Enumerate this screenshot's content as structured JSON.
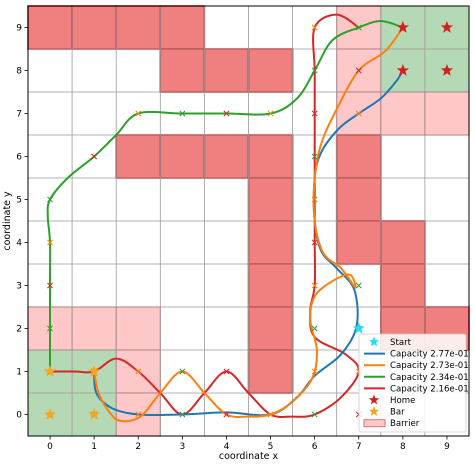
{
  "chart_data": {
    "type": "grid-path-plot",
    "xlabel": "coordinate x",
    "ylabel": "coordinate y",
    "xlim": [
      -0.5,
      9.5
    ],
    "ylim": [
      -0.5,
      9.5
    ],
    "xticks": [
      0,
      1,
      2,
      3,
      4,
      5,
      6,
      7,
      8,
      9
    ],
    "yticks": [
      0,
      1,
      2,
      3,
      4,
      5,
      6,
      7,
      8,
      9
    ],
    "grid": true,
    "legend_position": "lower-right",
    "legend_entries": [
      "Start",
      "Capacity 2.77e-01",
      "Capacity 2.73e-01",
      "Capacity 2.34e-01",
      "Capacity 2.16e-01",
      "Home",
      "Bar",
      "Barrier"
    ],
    "colors": {
      "barrier_strong": "#f08080",
      "barrier_light": "#ffc8c8",
      "home_zone": "#b5d9b5",
      "start": "#22e0f0",
      "home": "#d62020",
      "bar": "#f5a623"
    },
    "cells": {
      "barrier_strong": [
        [
          0,
          9
        ],
        [
          1,
          9
        ],
        [
          2,
          9
        ],
        [
          3,
          9
        ],
        [
          3,
          8
        ],
        [
          4,
          8
        ],
        [
          5,
          8
        ],
        [
          2,
          6
        ],
        [
          3,
          6
        ],
        [
          4,
          6
        ],
        [
          5,
          6
        ],
        [
          5,
          5
        ],
        [
          5,
          4
        ],
        [
          5,
          3
        ],
        [
          5,
          2
        ],
        [
          5,
          1
        ],
        [
          7,
          6
        ],
        [
          7,
          5
        ],
        [
          7,
          4
        ],
        [
          8,
          4
        ],
        [
          8,
          3
        ],
        [
          8,
          2
        ],
        [
          9,
          2
        ]
      ],
      "barrier_light": [
        [
          7,
          9
        ],
        [
          7,
          8
        ],
        [
          7,
          7
        ],
        [
          8,
          7
        ],
        [
          9,
          7
        ],
        [
          0,
          2
        ],
        [
          1,
          2
        ],
        [
          2,
          2
        ],
        [
          2,
          1
        ],
        [
          2,
          0
        ]
      ],
      "home_zone": [
        [
          8,
          9
        ],
        [
          9,
          9
        ],
        [
          8,
          8
        ],
        [
          9,
          8
        ],
        [
          0,
          1
        ],
        [
          1,
          1
        ],
        [
          0,
          0
        ],
        [
          1,
          0
        ]
      ]
    },
    "start": [
      [
        7,
        2
      ]
    ],
    "home": [
      [
        8,
        9
      ],
      [
        9,
        9
      ],
      [
        8,
        8
      ],
      [
        9,
        8
      ]
    ],
    "bar": [
      [
        0,
        1
      ],
      [
        1,
        1
      ],
      [
        0,
        0
      ],
      [
        1,
        0
      ]
    ],
    "series": [
      {
        "name": "Capacity 2.77e-01",
        "color": "#1f77b4",
        "waypoints": [
          [
            1,
            1
          ],
          [
            1.05,
            0.5
          ],
          [
            1.4,
            0.15
          ],
          [
            2,
            0
          ],
          [
            3,
            0
          ],
          [
            4,
            0.05
          ],
          [
            5,
            0
          ],
          [
            5.6,
            0.4
          ],
          [
            6,
            0.9
          ],
          [
            6.6,
            1.4
          ],
          [
            6.95,
            2.05
          ],
          [
            6.9,
            2.9
          ],
          [
            6.5,
            3.4
          ],
          [
            6.15,
            3.8
          ],
          [
            6,
            4.5
          ],
          [
            6,
            5.5
          ],
          [
            6.15,
            6.1
          ],
          [
            6.55,
            6.65
          ],
          [
            7,
            7
          ],
          [
            7.5,
            7.35
          ],
          [
            7.85,
            7.75
          ],
          [
            8,
            8
          ]
        ]
      },
      {
        "name": "Capacity 2.73e-01",
        "color": "#ff7f0e",
        "waypoints": [
          [
            1,
            1
          ],
          [
            1.1,
            0.5
          ],
          [
            1.35,
            0.05
          ],
          [
            1.6,
            -0.15
          ],
          [
            2.05,
            -0.05
          ],
          [
            2.5,
            0.5
          ],
          [
            3,
            1
          ],
          [
            3.5,
            0.5
          ],
          [
            4,
            0
          ],
          [
            4.5,
            -0.05
          ],
          [
            5,
            0
          ],
          [
            5.5,
            0.3
          ],
          [
            5.95,
            0.85
          ],
          [
            6.05,
            1.5
          ],
          [
            5.9,
            2.2
          ],
          [
            6,
            2.75
          ],
          [
            6.4,
            3.1
          ],
          [
            6.8,
            3.25
          ],
          [
            6.92,
            2.95
          ],
          [
            6.6,
            3.4
          ],
          [
            6.2,
            3.75
          ],
          [
            6,
            4.5
          ],
          [
            6,
            5.5
          ],
          [
            6.15,
            6.3
          ],
          [
            6.5,
            7.1
          ],
          [
            7,
            8
          ],
          [
            7.6,
            8.45
          ],
          [
            8,
            9
          ]
        ]
      },
      {
        "name": "Capacity 2.34e-01",
        "color": "#2ca02c",
        "waypoints": [
          [
            0,
            1
          ],
          [
            0,
            2
          ],
          [
            0,
            3
          ],
          [
            0,
            4
          ],
          [
            -0.05,
            4.6
          ],
          [
            0,
            5
          ],
          [
            0.4,
            5.5
          ],
          [
            1,
            6
          ],
          [
            1.5,
            6.5
          ],
          [
            2,
            7
          ],
          [
            3,
            7
          ],
          [
            4,
            7
          ],
          [
            5,
            7
          ],
          [
            5.6,
            7.35
          ],
          [
            6,
            8
          ],
          [
            6.4,
            8.7
          ],
          [
            7,
            9
          ],
          [
            7.5,
            9.15
          ],
          [
            8,
            9
          ]
        ]
      },
      {
        "name": "Capacity 2.16e-01",
        "color": "#d62728",
        "waypoints": [
          [
            0,
            1
          ],
          [
            0.55,
            1
          ],
          [
            1,
            1
          ],
          [
            1.5,
            1.3
          ],
          [
            2,
            1
          ],
          [
            2.5,
            0.5
          ],
          [
            3,
            0
          ],
          [
            3.5,
            0.5
          ],
          [
            4,
            1
          ],
          [
            4.5,
            0.5
          ],
          [
            5,
            0
          ],
          [
            5.5,
            -0.05
          ],
          [
            6,
            0
          ],
          [
            6.6,
            0.4
          ],
          [
            7,
            1
          ],
          [
            6.7,
            1.4
          ],
          [
            6,
            1.8
          ],
          [
            5.9,
            2.4
          ],
          [
            6,
            3
          ],
          [
            6,
            4
          ],
          [
            6,
            5
          ],
          [
            6,
            6
          ],
          [
            6,
            7
          ],
          [
            6,
            8
          ],
          [
            6,
            9
          ],
          [
            6.5,
            9.3
          ],
          [
            7,
            9
          ]
        ]
      }
    ],
    "x_markers": [
      [
        1,
        0
      ],
      [
        2,
        0
      ],
      [
        3,
        0
      ],
      [
        4,
        0
      ],
      [
        5,
        0
      ],
      [
        6,
        0
      ],
      [
        7,
        0
      ],
      [
        6,
        1
      ],
      [
        6,
        2
      ],
      [
        7,
        2
      ],
      [
        6,
        3
      ],
      [
        7,
        3
      ],
      [
        6,
        4
      ],
      [
        6,
        5
      ],
      [
        6,
        6
      ],
      [
        6,
        7
      ],
      [
        7,
        7
      ],
      [
        6,
        8
      ],
      [
        7,
        8
      ],
      [
        6,
        9
      ],
      [
        7,
        9
      ],
      [
        1,
        1
      ],
      [
        2,
        1
      ],
      [
        3,
        1
      ],
      [
        4,
        1
      ],
      [
        7,
        1
      ],
      [
        0,
        2
      ],
      [
        0,
        3
      ],
      [
        0,
        4
      ],
      [
        0,
        5
      ],
      [
        1,
        6
      ],
      [
        2,
        7
      ],
      [
        3,
        7
      ],
      [
        4,
        7
      ],
      [
        5,
        7
      ]
    ]
  }
}
